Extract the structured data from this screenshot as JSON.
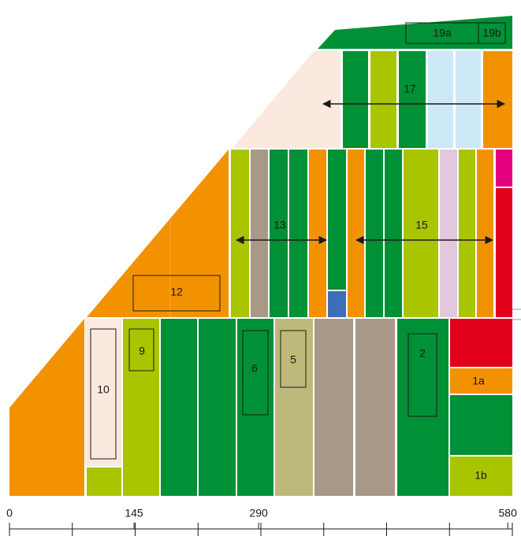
{
  "labels": {
    "l10": "10",
    "l9": "9",
    "l6": "6",
    "l5": "5",
    "l2": "2",
    "l1a": "1a",
    "l1b": "1b",
    "l12": "12",
    "l13": "13",
    "l15": "15",
    "l17": "17",
    "l19a": "19a",
    "l19b": "19b"
  },
  "scale": {
    "ticks": [
      0,
      145,
      290,
      580
    ]
  }
}
